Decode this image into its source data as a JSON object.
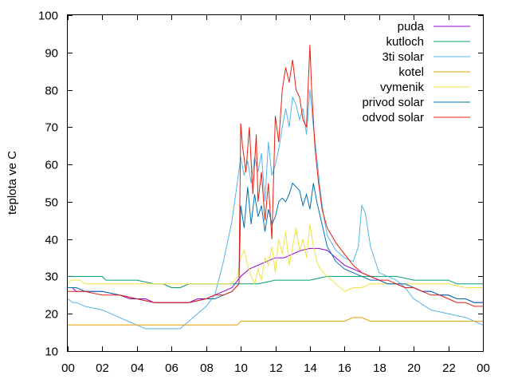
{
  "chart_data": {
    "type": "line",
    "title": "",
    "xlabel": "",
    "ylabel": "teplota ve C",
    "x_tick_labels": [
      "00",
      "02",
      "04",
      "06",
      "08",
      "10",
      "12",
      "14",
      "16",
      "18",
      "20",
      "22",
      "00"
    ],
    "x_range_hours": [
      0,
      24
    ],
    "ylim": [
      10,
      100
    ],
    "y_ticks": [
      10,
      20,
      30,
      40,
      50,
      60,
      70,
      80,
      90,
      100
    ],
    "grid": false,
    "legend_position": "top-right",
    "series": [
      {
        "name": "puda",
        "color": "#9400d3",
        "x": [
          0,
          0.25,
          0.5,
          1,
          2,
          3,
          3.6,
          4,
          4.5,
          5,
          6,
          6.5,
          7,
          7.5,
          8,
          8.5,
          9,
          9.5,
          10,
          10.5,
          11,
          11.5,
          12,
          12.5,
          13,
          13.5,
          14,
          14.5,
          15,
          15.5,
          16,
          16.5,
          17,
          17.5,
          18,
          18.5,
          19,
          19.5,
          20,
          20.5,
          21,
          21.5,
          22,
          22.5,
          23,
          23.5,
          24
        ],
        "y": [
          27,
          27,
          26,
          26,
          26,
          25,
          24,
          24,
          24,
          23,
          23,
          23,
          23,
          24,
          24,
          25,
          26,
          27,
          30,
          32,
          33,
          34,
          35,
          35,
          36,
          37,
          37.5,
          37.5,
          37,
          35,
          33,
          32,
          31,
          30,
          29,
          28,
          28,
          27,
          27,
          26,
          26,
          25,
          25,
          24,
          24,
          23,
          23
        ]
      },
      {
        "name": "kutloch",
        "color": "#009e73",
        "x": [
          0,
          1,
          2,
          2.2,
          3,
          4,
          5,
          5.5,
          6,
          6.5,
          7,
          8,
          9,
          10,
          11,
          12,
          13,
          14,
          15,
          16,
          17,
          18,
          19,
          20,
          21,
          22,
          22.5,
          23,
          24
        ],
        "y": [
          30,
          30,
          30,
          29,
          29,
          29,
          28,
          28,
          27,
          27,
          28,
          28,
          28,
          28,
          28,
          29,
          29,
          29,
          30,
          30,
          30,
          30,
          30,
          29,
          29,
          29,
          28,
          28,
          28
        ]
      },
      {
        "name": "3ti solar",
        "color": "#56b4e9",
        "x": [
          0,
          0.3,
          0.5,
          1,
          2,
          3,
          4,
          4.5,
          5,
          5.5,
          6,
          6.5,
          7,
          7.5,
          8,
          8.5,
          9,
          9.5,
          9.8,
          10,
          10.2,
          10.4,
          10.6,
          10.8,
          11,
          11.2,
          11.4,
          11.6,
          11.8,
          12,
          12.2,
          12.4,
          12.6,
          12.8,
          13,
          13.2,
          13.4,
          13.6,
          13.8,
          14,
          14.2,
          14.4,
          14.6,
          14.8,
          15,
          15.5,
          16,
          16.5,
          16.8,
          17,
          17.2,
          17.5,
          18,
          18.5,
          19,
          19.5,
          20,
          21,
          22,
          23,
          23.5,
          24
        ],
        "y": [
          24,
          23,
          23,
          22,
          21,
          19,
          17,
          16,
          16,
          16,
          16,
          16,
          18,
          20,
          22,
          25,
          34,
          45,
          55,
          62,
          57,
          61,
          55,
          62,
          58,
          63,
          50,
          66,
          57,
          60,
          64,
          70,
          75,
          70,
          78,
          76,
          72,
          75,
          68,
          80,
          70,
          62,
          53,
          46,
          41,
          37,
          35,
          34,
          38,
          49,
          47,
          38,
          31,
          30,
          29,
          27,
          24,
          21,
          20,
          19,
          18,
          17
        ]
      },
      {
        "name": "kotel",
        "color": "#e69f00",
        "x": [
          0,
          2,
          4,
          6,
          8,
          9,
          9.8,
          10,
          12,
          14,
          16,
          16.5,
          17,
          17.5,
          18,
          20,
          22,
          24
        ],
        "y": [
          17,
          17,
          17,
          17,
          17,
          17,
          17,
          18,
          18,
          18,
          18,
          19,
          19,
          18,
          18,
          18,
          18,
          18
        ]
      },
      {
        "name": "vymenik",
        "color": "#f0e442",
        "x": [
          0,
          0.2,
          0.7,
          1,
          2,
          3,
          4,
          5,
          6,
          7,
          8,
          9,
          9.5,
          9.8,
          10,
          10.2,
          10.4,
          10.6,
          10.8,
          11,
          11.2,
          11.4,
          11.6,
          11.8,
          12,
          12.2,
          12.4,
          12.6,
          12.8,
          13,
          13.2,
          13.4,
          13.6,
          13.8,
          14,
          14.2,
          14.4,
          14.6,
          15,
          15.5,
          16,
          16.5,
          17,
          17.5,
          18,
          19,
          20,
          21,
          22,
          23,
          23.5,
          24
        ],
        "y": [
          28,
          29,
          29,
          28,
          28,
          28,
          28,
          28,
          28,
          28,
          28,
          28,
          28,
          30,
          35,
          37,
          33,
          30,
          28,
          32,
          29,
          35,
          33,
          38,
          31,
          40,
          36,
          42,
          33,
          38,
          43,
          37,
          40,
          35,
          44,
          38,
          34,
          32,
          30,
          28,
          26,
          27,
          27,
          28,
          28,
          28,
          28,
          28,
          28,
          27,
          27,
          27
        ]
      },
      {
        "name": "privod solar",
        "color": "#0072b2",
        "x": [
          0,
          0.5,
          1,
          2,
          3,
          4,
          5,
          6,
          7,
          8,
          8.5,
          9,
          9.5,
          9.9,
          10,
          10.2,
          10.4,
          10.6,
          10.8,
          11,
          11.2,
          11.4,
          11.6,
          11.8,
          12,
          12.2,
          12.4,
          12.6,
          12.8,
          13,
          13.2,
          13.4,
          13.6,
          13.8,
          14,
          14.2,
          14.4,
          14.6,
          15,
          15.5,
          16,
          16.5,
          17,
          17.5,
          18,
          18.5,
          19,
          19.5,
          20,
          20.5,
          21,
          21.5,
          22,
          22.5,
          23,
          23.5,
          24
        ],
        "y": [
          27,
          27,
          26,
          26,
          25,
          24,
          23,
          23,
          23,
          24,
          24,
          25,
          26,
          28,
          49,
          43,
          54,
          44,
          52,
          46,
          49,
          42,
          48,
          44,
          46,
          50,
          51,
          50,
          52,
          55,
          54,
          53,
          49,
          52,
          48,
          55,
          50,
          46,
          38,
          34,
          32,
          31,
          30,
          29,
          29,
          28,
          28,
          28,
          27,
          26,
          26,
          25,
          25,
          24,
          24,
          23,
          23
        ]
      },
      {
        "name": "odvod solar",
        "color": "#e51e10",
        "x": [
          0,
          0.5,
          1,
          2,
          3,
          4,
          5,
          6,
          7,
          8,
          8.5,
          9,
          9.5,
          9.9,
          10,
          10.1,
          10.3,
          10.5,
          10.7,
          10.9,
          11,
          11.2,
          11.4,
          11.6,
          11.8,
          12,
          12.2,
          12.4,
          12.6,
          12.8,
          13,
          13.2,
          13.4,
          13.6,
          13.8,
          14,
          14.1,
          14.3,
          14.5,
          14.7,
          15,
          15.5,
          16,
          16.5,
          17,
          17.5,
          18,
          18.5,
          19,
          19.5,
          20,
          20.5,
          21,
          21.5,
          22,
          22.5,
          23,
          23.5,
          24
        ],
        "y": [
          26,
          26,
          26,
          25,
          25,
          24,
          23,
          23,
          23,
          24,
          25,
          25,
          26,
          28,
          71,
          65,
          58,
          70,
          52,
          68,
          50,
          58,
          45,
          55,
          40,
          73,
          66,
          80,
          86,
          82,
          88,
          80,
          78,
          72,
          70,
          92,
          80,
          64,
          55,
          48,
          43,
          39,
          36,
          33,
          31,
          30,
          29,
          29,
          28,
          27,
          27,
          26,
          25,
          25,
          24,
          23,
          23,
          22,
          22
        ]
      }
    ]
  }
}
